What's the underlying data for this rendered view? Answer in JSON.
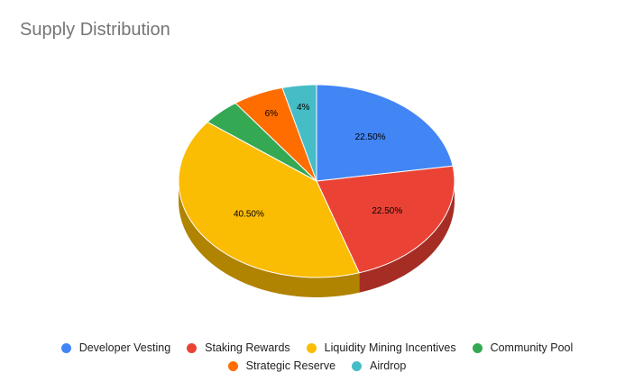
{
  "chart_data": {
    "type": "pie",
    "title": "Supply Distribution",
    "slices": [
      {
        "name": "Developer Vesting",
        "value": 22.5,
        "label": "22.50%",
        "color": "#4285f4",
        "side_color": "#2a5bb0"
      },
      {
        "name": "Staking Rewards",
        "value": 22.5,
        "label": "22.50%",
        "color": "#ea4335",
        "side_color": "#a52d24"
      },
      {
        "name": "Liquidity Mining Incentives",
        "value": 40.5,
        "label": "40.50%",
        "color": "#fbbc04",
        "side_color": "#b08300"
      },
      {
        "name": "Community Pool",
        "value": 4.5,
        "label": "",
        "color": "#34a853",
        "side_color": "#237339"
      },
      {
        "name": "Strategic Reserve",
        "value": 6,
        "label": "6%",
        "color": "#ff6d01",
        "side_color": "#b34c00"
      },
      {
        "name": "Airdrop",
        "value": 4,
        "label": "4%",
        "color": "#46bdc6",
        "side_color": "#30848b"
      }
    ],
    "legend_position": "bottom",
    "style": "3d"
  }
}
